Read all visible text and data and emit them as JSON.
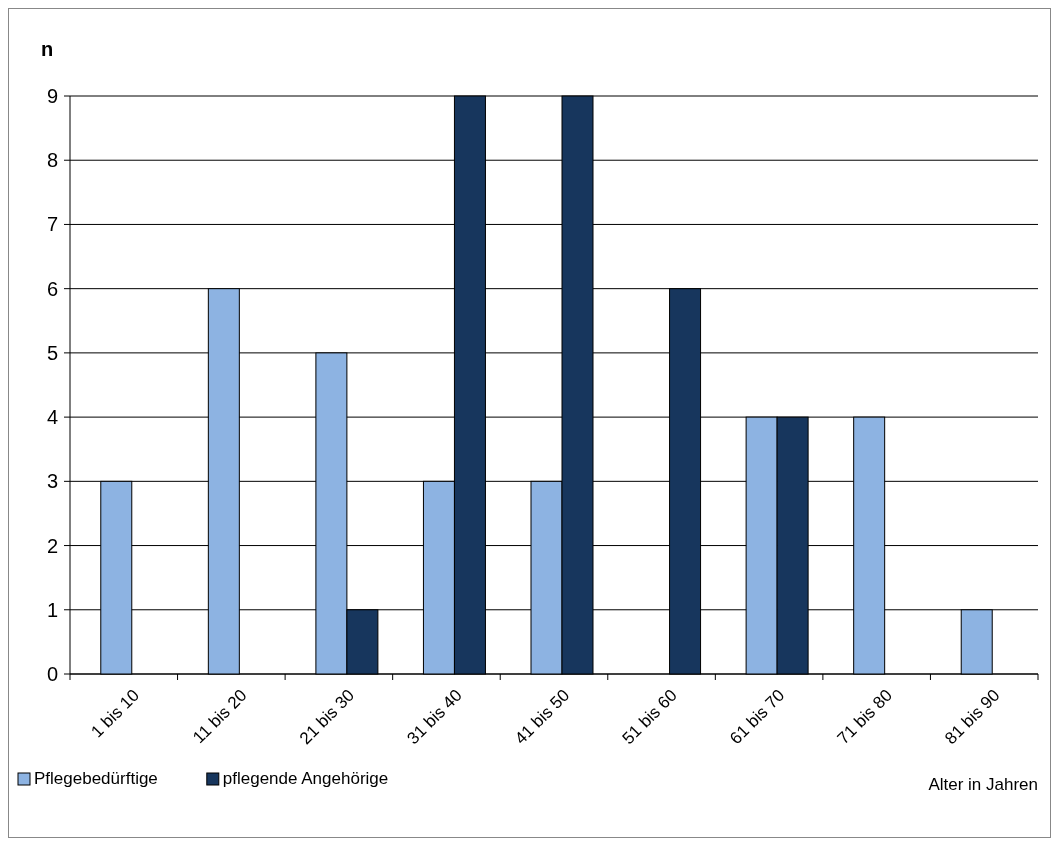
{
  "chart_data": {
    "type": "bar",
    "ylabel": "n",
    "xlabel": "Alter in Jahren",
    "categories": [
      "1 bis 10",
      "11 bis 20",
      "21 bis 30",
      "31 bis 40",
      "41 bis 50",
      "51 bis 60",
      "61 bis 70",
      "71 bis 80",
      "81 bis 90"
    ],
    "series": [
      {
        "name": "Pflegebedürftige",
        "color": "#8db3e2",
        "values": [
          3,
          6,
          5,
          3,
          3,
          null,
          4,
          4,
          1
        ]
      },
      {
        "name": "pflegende Angehörige",
        "color": "#17365d",
        "values": [
          null,
          null,
          1,
          9,
          9,
          6,
          4,
          null,
          null
        ]
      }
    ],
    "ylim": [
      0,
      9
    ],
    "yticks": [
      0,
      1,
      2,
      3,
      4,
      5,
      6,
      7,
      8,
      9
    ],
    "grid": "y",
    "legend": "bottom left"
  }
}
